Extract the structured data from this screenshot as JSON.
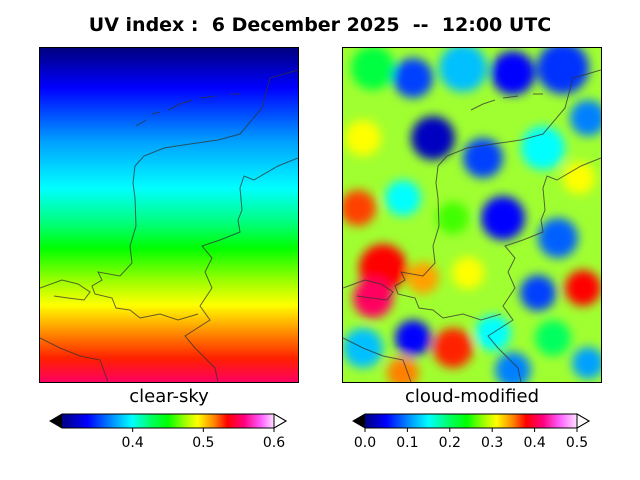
{
  "header": {
    "title": "UV index :  6 December 2025  --  12:00 UTC"
  },
  "panels": {
    "left": {
      "label": "clear-sky",
      "colorbar": {
        "min": 0.3,
        "max": 0.6,
        "ticks": [
          "0.4",
          "0.5",
          "0.6"
        ],
        "tick_values": [
          0.4,
          0.5,
          0.6
        ]
      }
    },
    "right": {
      "label": "cloud-modified",
      "colorbar": {
        "min": 0.0,
        "max": 0.5,
        "ticks": [
          "0.0",
          "0.1",
          "0.2",
          "0.3",
          "0.4",
          "0.5"
        ],
        "tick_values": [
          0.0,
          0.1,
          0.2,
          0.3,
          0.4,
          0.5
        ]
      }
    }
  },
  "colormap": {
    "name": "gist_ncar",
    "colors": [
      "#000080",
      "#0000ff",
      "#00c0ff",
      "#00ffff",
      "#00ff60",
      "#00ff00",
      "#a0ff00",
      "#ffff00",
      "#ff8000",
      "#ff0000",
      "#ff0080",
      "#ff40ff",
      "#ffffff"
    ]
  }
}
